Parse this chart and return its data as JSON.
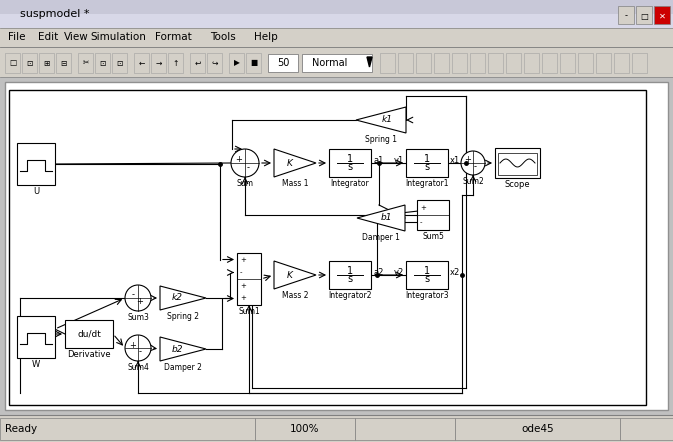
{
  "title": "suspmodel *",
  "bg_color": "#d4d0c8",
  "canvas_color": "#ffffff",
  "titlebar_color": "#e8e8f0",
  "menubar_items": [
    "File",
    "Edit",
    "View",
    "Simulation",
    "Format",
    "Tools",
    "Help"
  ],
  "status_left": "Ready",
  "status_center": "100%",
  "status_right": "ode45",
  "font_size_label": 6.5,
  "font_size_block": 6,
  "font_size_title": 8,
  "font_size_menu": 7.5,
  "font_size_status": 7.5
}
